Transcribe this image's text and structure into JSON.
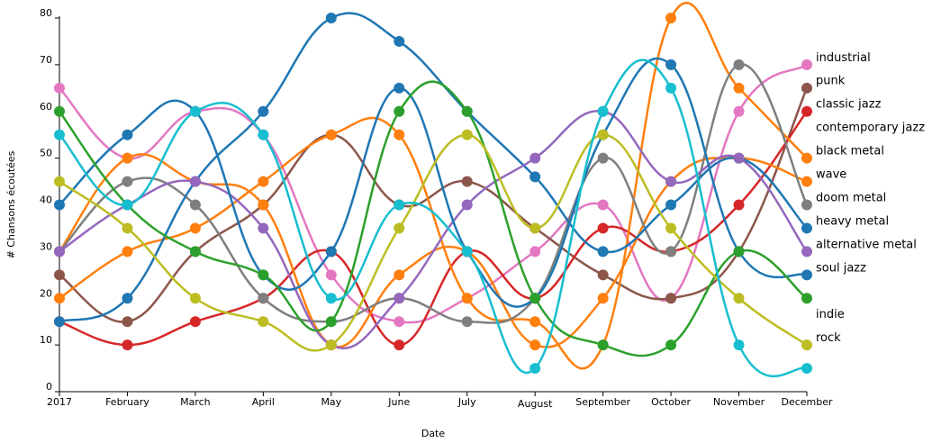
{
  "chart_data": {
    "type": "line",
    "xlabel": "Date",
    "ylabel": "# Chansons écoutées",
    "ylim": [
      0,
      80
    ],
    "yticks": [
      "0",
      "10",
      "20",
      "30",
      "40",
      "50",
      "60",
      "70",
      "80"
    ],
    "categories": [
      "2017",
      "February",
      "March",
      "April",
      "May",
      "June",
      "July",
      "August",
      "September",
      "October",
      "November",
      "December"
    ],
    "grid": false,
    "legend_placement": "right, labels at line ends",
    "series": [
      {
        "name": "industrial",
        "color": "#e377c2",
        "values": [
          65,
          50,
          60,
          55,
          25,
          15,
          20,
          30,
          40,
          20,
          60,
          70
        ]
      },
      {
        "name": "punk",
        "color": "#8c564b",
        "values": [
          25,
          15,
          30,
          40,
          55,
          40,
          45,
          35,
          25,
          20,
          30,
          65
        ]
      },
      {
        "name": "classic jazz",
        "color": "#d62728",
        "values": [
          15,
          10,
          15,
          20,
          30,
          10,
          30,
          20,
          35,
          30,
          40,
          60
        ]
      },
      {
        "name": "contemporary jazz",
        "color": "#ff7f0e",
        "values": [
          20,
          30,
          35,
          45,
          55,
          55,
          20,
          15,
          10,
          80,
          65,
          50
        ]
      },
      {
        "name": "black metal",
        "color": "#ff7f0e",
        "values": [
          30,
          50,
          45,
          40,
          10,
          25,
          30,
          10,
          20,
          45,
          50,
          45
        ]
      },
      {
        "name": "wave",
        "color": "#7f7f7f",
        "values": [
          30,
          45,
          40,
          20,
          15,
          20,
          15,
          20,
          50,
          30,
          70,
          40
        ]
      },
      {
        "name": "doom metal",
        "color": "#1f77b4",
        "values": [
          15,
          20,
          45,
          60,
          80,
          75,
          60,
          46,
          30,
          40,
          50,
          35
        ]
      },
      {
        "name": "heavy metal",
        "color": "#9467bd",
        "values": [
          30,
          40,
          45,
          35,
          10,
          20,
          40,
          50,
          60,
          45,
          50,
          30
        ]
      },
      {
        "name": "alternative metal",
        "color": "#1f77b4",
        "values": [
          40,
          55,
          60,
          25,
          30,
          65,
          30,
          20,
          55,
          70,
          30,
          25
        ]
      },
      {
        "name": "soul jazz",
        "color": "#2ca02c",
        "values": [
          60,
          40,
          30,
          25,
          15,
          60,
          60,
          20,
          10,
          10,
          30,
          20
        ]
      },
      {
        "name": "indie",
        "color": "#bcbd22",
        "values": [
          45,
          35,
          20,
          15,
          10,
          35,
          55,
          35,
          55,
          35,
          20,
          10
        ]
      },
      {
        "name": "rock",
        "color": "#17becf",
        "values": [
          55,
          40,
          60,
          55,
          20,
          40,
          30,
          5,
          60,
          65,
          10,
          5
        ]
      }
    ]
  }
}
